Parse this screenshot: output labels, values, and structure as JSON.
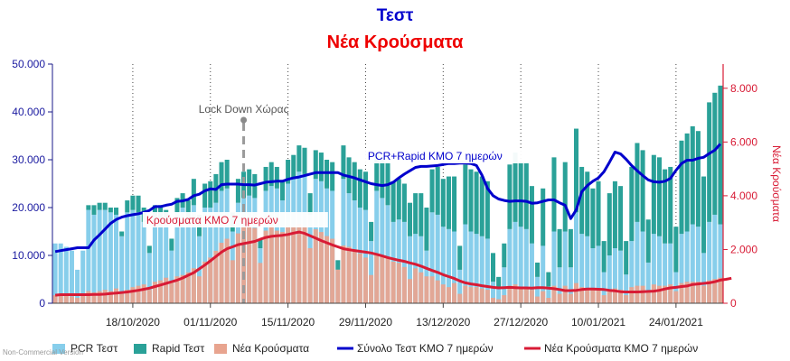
{
  "title": "Τεστ",
  "subtitle": "Νέα Κρούσματα",
  "watermark": "Non-Commercial Version",
  "colors": {
    "pcr": "#87ceeb",
    "rapid": "#2aa198",
    "cases": "#e8a48f",
    "tests7": "#0000cc",
    "cases7": "#d81b35",
    "left_axis": "#1a1aa0",
    "right_axis": "#d81b35",
    "title": "#0000cc",
    "subtitle": "#ee0000"
  },
  "chart_data": {
    "type": "bar",
    "title": "Τεστ",
    "subtitle": "Νέα Κρούσματα",
    "xlabel": "",
    "ylabel_left": "",
    "ylabel_right": "Νέα Κρούσματα",
    "x_start": "2020-10-04",
    "x_tick_labels": [
      "18/10/2020",
      "01/11/2020",
      "15/11/2020",
      "29/11/2020",
      "13/12/2020",
      "27/12/2020",
      "10/01/2021",
      "24/01/2021"
    ],
    "x_tick_dates": [
      "2020-10-18",
      "2020-11-01",
      "2020-11-15",
      "2020-11-29",
      "2020-12-13",
      "2020-12-27",
      "2021-01-10",
      "2021-01-24"
    ],
    "ylim_left": [
      0,
      50000
    ],
    "ylim_right": [
      0,
      8900
    ],
    "left_ticks": [
      "0",
      "10.000",
      "20.000",
      "30.000",
      "40.000",
      "50.000"
    ],
    "right_ticks": [
      "0",
      "2.000",
      "4.000",
      "6.000",
      "8.000"
    ],
    "grid": "vertical dotted at x ticks",
    "legend_position": "bottom",
    "series": [
      {
        "name": "PCR Τεστ",
        "kind": "stacked-bar",
        "axis": "left",
        "values": [
          12500,
          12500,
          11800,
          11000,
          7000,
          11000,
          19500,
          18500,
          19500,
          19500,
          19000,
          18500,
          14000,
          19000,
          19500,
          19000,
          17000,
          10500,
          17500,
          17000,
          16500,
          11000,
          19000,
          20000,
          16500,
          20500,
          14000,
          20000,
          20000,
          21000,
          23500,
          24000,
          15000,
          21000,
          22000,
          22500,
          22000,
          11500,
          23500,
          24500,
          24000,
          21500,
          25000,
          26000,
          27500,
          27000,
          18500,
          26000,
          25500,
          24000,
          23500,
          7000,
          26000,
          23000,
          21500,
          20000,
          19500,
          13000,
          23500,
          22000,
          20500,
          17000,
          17500,
          17000,
          14000,
          14500,
          14000,
          11000,
          19000,
          18500,
          16000,
          15500,
          15000,
          7000,
          16500,
          15000,
          14500,
          14000,
          13500,
          4500,
          3000,
          7500,
          15500,
          17000,
          16000,
          15500,
          12500,
          5500,
          12000,
          3500,
          15000,
          7500,
          15000,
          7500,
          19000,
          14500,
          14000,
          11500,
          12000,
          6500,
          10000,
          11500,
          11000,
          6000,
          13000,
          17000,
          15000,
          8500,
          14500,
          14000,
          12500,
          12500,
          6500,
          14500,
          15000,
          16500,
          16000,
          10500,
          17000,
          18500,
          16500
        ]
      },
      {
        "name": "Rapid Τεστ",
        "kind": "stacked-bar",
        "axis": "left",
        "values": [
          0,
          0,
          0,
          0,
          0,
          0,
          1000,
          2000,
          1500,
          1500,
          1000,
          1500,
          1000,
          2500,
          3000,
          3500,
          3000,
          1500,
          3000,
          3500,
          3000,
          2500,
          3000,
          3000,
          5000,
          5500,
          4500,
          5000,
          5500,
          6000,
          6000,
          6000,
          4000,
          5000,
          5500,
          5500,
          5000,
          2000,
          5000,
          5000,
          4500,
          4000,
          5000,
          5000,
          5500,
          5500,
          4500,
          6000,
          6000,
          6000,
          6000,
          2000,
          7000,
          7500,
          8000,
          8000,
          8000,
          4000,
          8000,
          8500,
          9000,
          8500,
          8500,
          8000,
          7000,
          8500,
          9000,
          9000,
          9000,
          10000,
          10000,
          11000,
          11500,
          5000,
          12500,
          13000,
          13000,
          12500,
          12000,
          6000,
          2500,
          5000,
          13500,
          14500,
          13500,
          14000,
          12000,
          3000,
          12000,
          3000,
          15500,
          8000,
          14500,
          8000,
          17500,
          14000,
          13500,
          12500,
          13500,
          6500,
          13000,
          14000,
          13500,
          7000,
          15500,
          16500,
          17000,
          9000,
          16500,
          16500,
          15500,
          16000,
          9500,
          19500,
          20500,
          20500,
          20000,
          16000,
          25000,
          25500,
          29000
        ]
      },
      {
        "name": "Νέα Κρούσματα",
        "kind": "bar",
        "axis": "right",
        "values": [
          300,
          350,
          300,
          250,
          200,
          350,
          450,
          400,
          450,
          500,
          450,
          550,
          350,
          500,
          600,
          650,
          700,
          500,
          800,
          850,
          950,
          800,
          1000,
          1050,
          1150,
          1300,
          1000,
          1550,
          1700,
          1950,
          2250,
          2400,
          1600,
          2600,
          2850,
          2950,
          2800,
          1500,
          2700,
          2900,
          2700,
          2650,
          2850,
          2850,
          2950,
          2850,
          2050,
          2750,
          2650,
          2500,
          2400,
          1250,
          2150,
          2100,
          1950,
          1850,
          1700,
          1050,
          1850,
          1750,
          1700,
          1550,
          1500,
          1350,
          900,
          1300,
          1150,
          1000,
          1000,
          850,
          700,
          600,
          750,
          350,
          650,
          600,
          600,
          550,
          500,
          200,
          150,
          300,
          650,
          700,
          600,
          550,
          500,
          250,
          450,
          200,
          650,
          350,
          650,
          350,
          750,
          600,
          550,
          500,
          550,
          300,
          500,
          550,
          500,
          300,
          600,
          650,
          650,
          450,
          700,
          650,
          650,
          700,
          450,
          750,
          800,
          800,
          800,
          650,
          850,
          900,
          950
        ]
      },
      {
        "name": "Σύνολο Τεστ ΚΜΟ 7 ημερών",
        "kind": "line",
        "axis": "left",
        "values": [
          10800,
          11000,
          11200,
          11400,
          11600,
          11600,
          11600,
          13200,
          14300,
          15500,
          16700,
          17500,
          18000,
          18300,
          18500,
          18700,
          19000,
          19400,
          20200,
          20200,
          20500,
          20700,
          21300,
          21400,
          21700,
          22500,
          22800,
          23500,
          23900,
          23800,
          24800,
          24900,
          24900,
          24900,
          24800,
          24800,
          24700,
          25000,
          25300,
          25400,
          25500,
          25500,
          25900,
          26200,
          26400,
          26700,
          27000,
          27300,
          27300,
          27300,
          27300,
          27300,
          26800,
          26500,
          26200,
          25800,
          25400,
          25000,
          24800,
          24600,
          24800,
          25300,
          26200,
          27000,
          27700,
          28400,
          28600,
          28600,
          28700,
          28800,
          29000,
          29200,
          29200,
          29300,
          29300,
          29200,
          28800,
          26800,
          24000,
          22500,
          21800,
          21500,
          21300,
          21400,
          21400,
          21300,
          20900,
          21000,
          21300,
          21600,
          21600,
          21000,
          20500,
          17700,
          19500,
          23300,
          24600,
          25500,
          26200,
          27500,
          29500,
          31600,
          31200,
          30100,
          28800,
          27700,
          26700,
          25800,
          25400,
          25300,
          25500,
          26100,
          27800,
          29200,
          29900,
          29900,
          30300,
          30500,
          31300,
          32000,
          33300
        ]
      },
      {
        "name": "Νέα Κρούσματα ΚΜΟ 7 ημερών",
        "kind": "line",
        "axis": "right",
        "values": [
          300,
          320,
          320,
          320,
          320,
          320,
          320,
          330,
          330,
          340,
          360,
          380,
          400,
          420,
          450,
          480,
          520,
          560,
          620,
          680,
          740,
          800,
          860,
          940,
          1040,
          1140,
          1280,
          1420,
          1580,
          1740,
          1900,
          2030,
          2100,
          2180,
          2220,
          2260,
          2300,
          2380,
          2450,
          2490,
          2510,
          2530,
          2560,
          2610,
          2650,
          2600,
          2510,
          2420,
          2330,
          2250,
          2170,
          2100,
          2030,
          1990,
          1960,
          1930,
          1900,
          1870,
          1820,
          1760,
          1700,
          1650,
          1600,
          1560,
          1500,
          1450,
          1380,
          1300,
          1220,
          1150,
          1060,
          990,
          920,
          830,
          760,
          720,
          690,
          650,
          620,
          590,
          570,
          580,
          590,
          580,
          570,
          570,
          560,
          580,
          580,
          560,
          540,
          510,
          470,
          470,
          480,
          510,
          530,
          530,
          520,
          510,
          480,
          460,
          430,
          420,
          420,
          420,
          430,
          440,
          450,
          480,
          530,
          570,
          590,
          620,
          640,
          700,
          720,
          740,
          760,
          800,
          860,
          890,
          930
        ]
      }
    ],
    "annotations": [
      {
        "text": "Lock Down Χώρας",
        "date": "2020-11-07"
      },
      {
        "text": "Κρούσματα ΚΜΟ 7 ημερών"
      },
      {
        "text": "PCR+Rapid ΚΜΟ 7 ημερών"
      }
    ]
  },
  "legend": [
    {
      "label": "PCR Τεστ",
      "key": "pcr",
      "shape": "box"
    },
    {
      "label": "Rapid Τεστ",
      "key": "rapid",
      "shape": "box"
    },
    {
      "label": "Νέα Κρούσματα",
      "key": "cases",
      "shape": "box"
    },
    {
      "label": "Σύνολο Τεστ ΚΜΟ 7 ημερών",
      "key": "tests7",
      "shape": "line"
    },
    {
      "label": "Νέα Κρούσματα ΚΜΟ 7 ημερών",
      "key": "cases7",
      "shape": "line"
    }
  ]
}
